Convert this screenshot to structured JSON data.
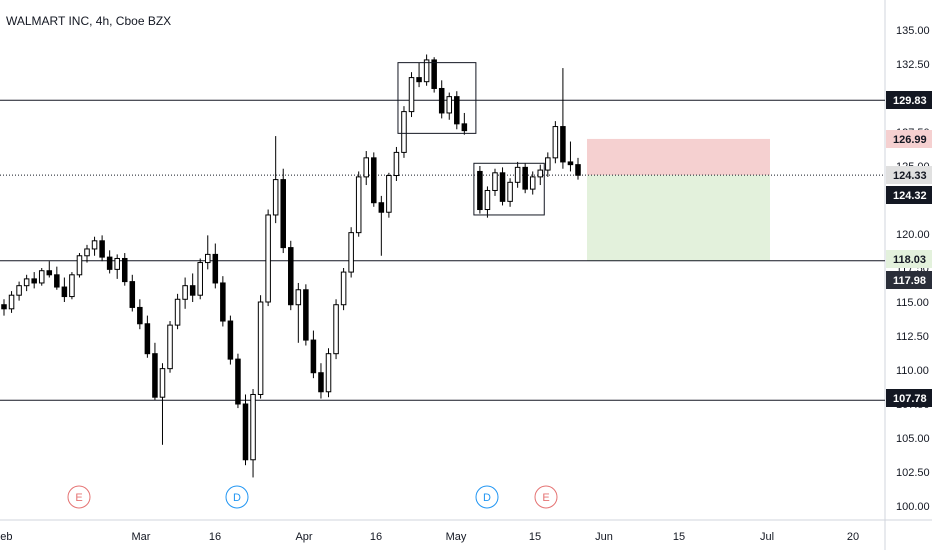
{
  "header": {
    "title": "WALMART INC, 4h, Cboe BZX"
  },
  "colors": {
    "up": "#ffffff",
    "down": "#000000",
    "wick": "#000000",
    "axis_text": "#131722",
    "price_tag_bg": "#131722",
    "price_tag_text": "#ffffff",
    "stop_zone": "#f5d0d0",
    "target_zone": "#e3f1dc",
    "event_earnings": "#e57373",
    "event_dividend": "#2196f3"
  },
  "chart_data": {
    "type": "candlestick",
    "title": "WALMART INC, 4h, Cboe BZX",
    "ylim": [
      99.0,
      137.0
    ],
    "y_ticks": [
      "100.00",
      "102.50",
      "105.00",
      "107.50",
      "110.00",
      "112.50",
      "115.00",
      "117.50",
      "120.00",
      "122.50",
      "125.00",
      "127.50",
      "130.00",
      "132.50",
      "135.00"
    ],
    "x_ticks": [
      "Feb",
      "Mar",
      "16",
      "Apr",
      "16",
      "May",
      "15",
      "Jun",
      "15",
      "Jul",
      "20"
    ],
    "horizontal_levels": [
      129.83,
      118.03,
      107.78
    ],
    "current_price_line": 124.33,
    "price_labels": [
      "135.00",
      "129.83",
      "126.99",
      "124.33",
      "124.32",
      "118.03",
      "117.98",
      "107.78"
    ],
    "position_tool": {
      "entry": 124.33,
      "stop": 126.99,
      "target": 118.03
    },
    "consolidation_boxes": [
      {
        "top": 132.6,
        "bottom": 127.4,
        "label": ""
      },
      {
        "top": 125.2,
        "bottom": 121.4,
        "label": ""
      }
    ],
    "events": [
      {
        "type": "earnings",
        "label": "E",
        "date": "Feb 18"
      },
      {
        "type": "dividend",
        "label": "D",
        "date": "Mar 19"
      },
      {
        "type": "dividend",
        "label": "D",
        "date": "May 7"
      },
      {
        "type": "earnings",
        "label": "E",
        "date": "May 18"
      }
    ],
    "series": [
      {
        "values": [
          [
            114.8,
            115.2,
            114.0,
            114.5
          ],
          [
            114.5,
            115.8,
            114.2,
            115.5
          ],
          [
            115.5,
            116.5,
            115.1,
            116.2
          ],
          [
            116.2,
            117.0,
            115.8,
            116.7
          ],
          [
            116.7,
            117.2,
            116.0,
            116.4
          ],
          [
            116.4,
            117.5,
            116.2,
            117.3
          ],
          [
            117.3,
            118.0,
            116.8,
            117.0
          ],
          [
            117.0,
            117.6,
            115.9,
            116.1
          ],
          [
            116.1,
            116.8,
            115.0,
            115.4
          ],
          [
            115.4,
            117.2,
            115.2,
            117.0
          ],
          [
            117.0,
            118.6,
            116.8,
            118.4
          ],
          [
            118.4,
            119.2,
            117.9,
            118.9
          ],
          [
            118.9,
            119.8,
            118.4,
            119.5
          ],
          [
            119.5,
            119.9,
            118.0,
            118.3
          ],
          [
            118.3,
            118.8,
            117.1,
            117.4
          ],
          [
            117.4,
            118.5,
            116.7,
            118.2
          ],
          [
            118.2,
            118.6,
            116.2,
            116.5
          ],
          [
            116.5,
            117.0,
            114.3,
            114.6
          ],
          [
            114.6,
            115.2,
            113.0,
            113.4
          ],
          [
            113.4,
            114.0,
            110.9,
            111.2
          ],
          [
            111.2,
            112.0,
            107.8,
            108.0
          ],
          [
            108.0,
            110.5,
            104.5,
            110.1
          ],
          [
            110.1,
            113.6,
            109.8,
            113.3
          ],
          [
            113.3,
            115.6,
            113.0,
            115.2
          ],
          [
            115.2,
            116.8,
            114.5,
            116.2
          ],
          [
            116.2,
            117.1,
            115.0,
            115.5
          ],
          [
            115.5,
            118.2,
            115.2,
            117.9
          ],
          [
            117.9,
            119.9,
            117.4,
            118.5
          ],
          [
            118.5,
            119.3,
            116.0,
            116.4
          ],
          [
            116.4,
            116.9,
            113.2,
            113.6
          ],
          [
            113.6,
            114.0,
            110.4,
            110.8
          ],
          [
            110.8,
            111.2,
            107.2,
            107.5
          ],
          [
            107.5,
            108.2,
            103.0,
            103.4
          ],
          [
            103.4,
            108.6,
            102.1,
            108.2
          ],
          [
            108.2,
            115.5,
            107.9,
            115.0
          ],
          [
            115.0,
            121.8,
            114.7,
            121.4
          ],
          [
            121.4,
            127.2,
            120.8,
            124.0
          ],
          [
            124.0,
            124.8,
            118.6,
            119.0
          ],
          [
            119.0,
            119.5,
            114.4,
            114.8
          ],
          [
            114.8,
            116.4,
            112.0,
            115.9
          ],
          [
            115.9,
            116.3,
            111.8,
            112.2
          ],
          [
            112.2,
            112.9,
            109.4,
            109.8
          ],
          [
            109.8,
            110.5,
            107.9,
            108.4
          ],
          [
            108.4,
            111.6,
            108.0,
            111.2
          ],
          [
            111.2,
            115.2,
            110.8,
            114.8
          ],
          [
            114.8,
            117.5,
            114.4,
            117.2
          ],
          [
            117.2,
            120.5,
            116.8,
            120.1
          ],
          [
            120.1,
            124.6,
            119.8,
            124.2
          ],
          [
            124.2,
            126.1,
            123.6,
            125.6
          ],
          [
            125.6,
            126.0,
            122.0,
            122.3
          ],
          [
            122.3,
            122.8,
            118.4,
            121.6
          ],
          [
            121.6,
            124.5,
            121.2,
            124.3
          ],
          [
            124.3,
            126.4,
            123.9,
            126.0
          ],
          [
            126.0,
            129.4,
            125.6,
            129.0
          ],
          [
            129.0,
            131.9,
            128.6,
            131.5
          ],
          [
            131.5,
            132.6,
            130.8,
            131.2
          ],
          [
            131.2,
            133.2,
            130.9,
            132.8
          ],
          [
            132.8,
            133.0,
            130.4,
            130.7
          ],
          [
            130.7,
            131.3,
            128.5,
            128.9
          ],
          [
            128.9,
            130.4,
            128.4,
            130.1
          ],
          [
            130.1,
            130.5,
            127.7,
            128.1
          ],
          [
            128.1,
            128.9,
            127.3,
            127.6
          ],
          [
            124.6,
            125.0,
            121.5,
            121.8
          ],
          [
            121.8,
            123.5,
            121.2,
            123.2
          ],
          [
            123.2,
            124.8,
            122.8,
            124.5
          ],
          [
            124.5,
            124.9,
            122.1,
            122.4
          ],
          [
            122.4,
            124.1,
            122.0,
            123.8
          ],
          [
            123.8,
            125.3,
            123.4,
            124.9
          ],
          [
            124.9,
            125.2,
            123.0,
            123.3
          ],
          [
            123.3,
            124.6,
            122.9,
            124.2
          ],
          [
            124.2,
            125.1,
            123.6,
            124.7
          ],
          [
            124.7,
            126.0,
            124.2,
            125.6
          ],
          [
            125.6,
            128.3,
            125.2,
            127.9
          ],
          [
            127.9,
            132.2,
            124.8,
            125.3
          ],
          [
            125.3,
            126.8,
            124.6,
            125.1
          ],
          [
            125.1,
            125.6,
            124.0,
            124.32
          ]
        ]
      }
    ]
  }
}
